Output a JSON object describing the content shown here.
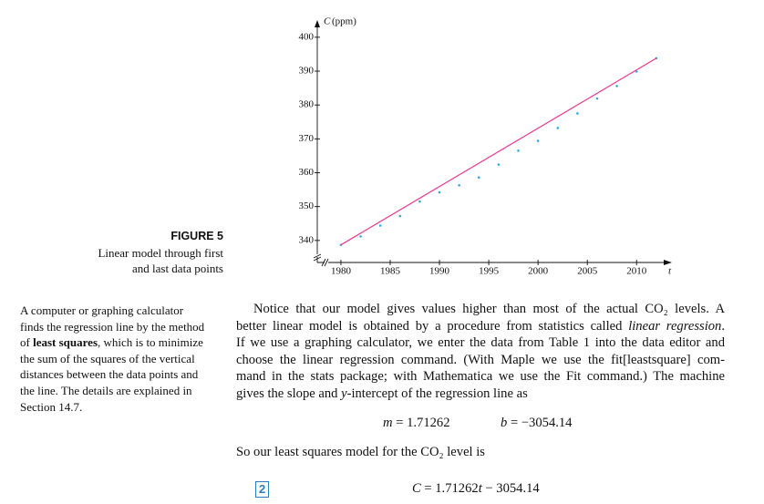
{
  "chart_data": {
    "type": "scatter",
    "y_label": "C",
    "y_unit": "(ppm)",
    "x_label": "t",
    "xlim": [
      1977.6,
      2013.4
    ],
    "ylim": [
      333.5,
      404
    ],
    "xticks": [
      1980,
      1985,
      1990,
      1995,
      2000,
      2005,
      2010
    ],
    "yticks": [
      340,
      350,
      360,
      370,
      380,
      390,
      400
    ],
    "series": [
      {
        "type": "scatter",
        "color": "#35a8dc",
        "x": [
          1980,
          1982,
          1984,
          1986,
          1988,
          1990,
          1992,
          1994,
          1996,
          1998,
          2000,
          2002,
          2004,
          2006,
          2008,
          2010,
          2012
        ],
        "values": [
          338.7,
          341.2,
          344.4,
          347.2,
          351.5,
          354.2,
          356.3,
          358.6,
          362.4,
          366.5,
          369.4,
          373.2,
          377.5,
          381.9,
          385.6,
          389.9,
          393.8
        ]
      },
      {
        "type": "line",
        "color": "#e8388f",
        "x": [
          1980,
          2012
        ],
        "values": [
          338.7,
          393.8
        ]
      }
    ]
  },
  "figure": {
    "label": "FIGURE 5",
    "caption": [
      "Linear model through first",
      "and last data points"
    ]
  },
  "sidebar": [
    [
      "A computer or graphing calculator"
    ],
    [
      "finds the regression line by the method"
    ],
    [
      "of ",
      {
        "text": "least squares",
        "style": "bold"
      },
      ", which is to minimize"
    ],
    [
      "the sum of the squares of the vertical"
    ],
    [
      "distances between the data points and"
    ],
    [
      "the line. The details are explained in"
    ],
    [
      "Section 14.7."
    ]
  ],
  "paragraph": [
    [
      "Notice that our model gives values higher than most of the actual CO₂ levels. A"
    ],
    [
      "better linear model is obtained by a procedure from statistics called ",
      {
        "text": "linear regression",
        "style": "italic"
      },
      "."
    ],
    [
      "If we use a graphing calculator, we enter the data from Table 1 into the data editor and"
    ],
    [
      "choose the linear regression command. (With Maple we use the fit[leastsquare] com-"
    ],
    [
      "mand in the stats package; with Mathematica we use the Fit command.) The machine"
    ],
    [
      "gives the slope and ",
      {
        "text": "y",
        "style": "italic"
      },
      "-intercept of the regression line as"
    ]
  ],
  "equation1": {
    "slope": [
      {
        "text": "m",
        "style": "italic"
      },
      " = 1.71262"
    ],
    "intercept": [
      {
        "text": "b",
        "style": "italic"
      },
      " = −3054.14"
    ]
  },
  "sentence": [
    "So our least squares model for the CO₂ level is"
  ],
  "equation2": {
    "number": "2",
    "parts": [
      {
        "text": "C",
        "style": "italic"
      },
      " = 1.71262",
      {
        "text": "t",
        "style": "italic"
      },
      " − 3054.14"
    ]
  }
}
